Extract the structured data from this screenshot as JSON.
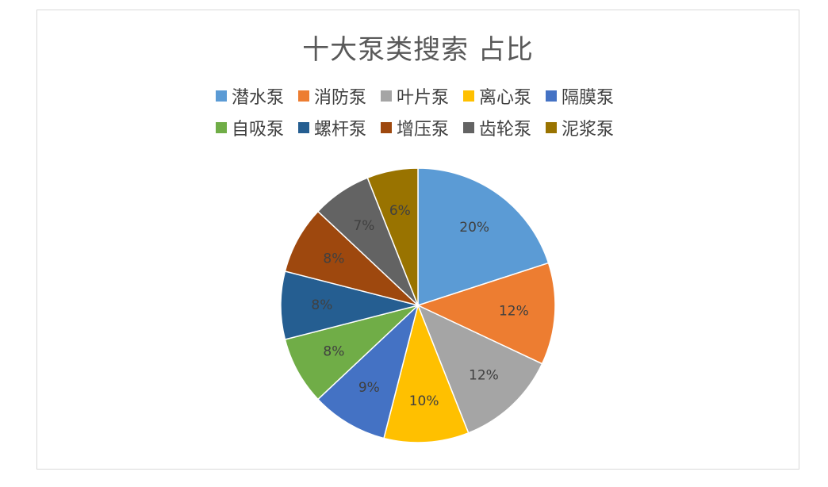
{
  "chart_data": {
    "type": "pie",
    "title": "十大泵类搜索 占比",
    "categories": [
      "潜水泵",
      "消防泵",
      "叶片泵",
      "离心泵",
      "隔膜泵",
      "自吸泵",
      "螺杆泵",
      "增压泵",
      "齿轮泵",
      "泥浆泵"
    ],
    "values": [
      20,
      12,
      12,
      10,
      9,
      8,
      8,
      8,
      7,
      6
    ],
    "labels": [
      "20%",
      "12%",
      "12%",
      "10%",
      "9%",
      "8%",
      "8%",
      "8%",
      "7%",
      "6%"
    ],
    "colors": [
      "#5B9BD5",
      "#ED7D31",
      "#A5A5A5",
      "#FFC000",
      "#4472C4",
      "#70AD47",
      "#255E91",
      "#9E480E",
      "#636363",
      "#997300"
    ],
    "legend_position": "top"
  }
}
